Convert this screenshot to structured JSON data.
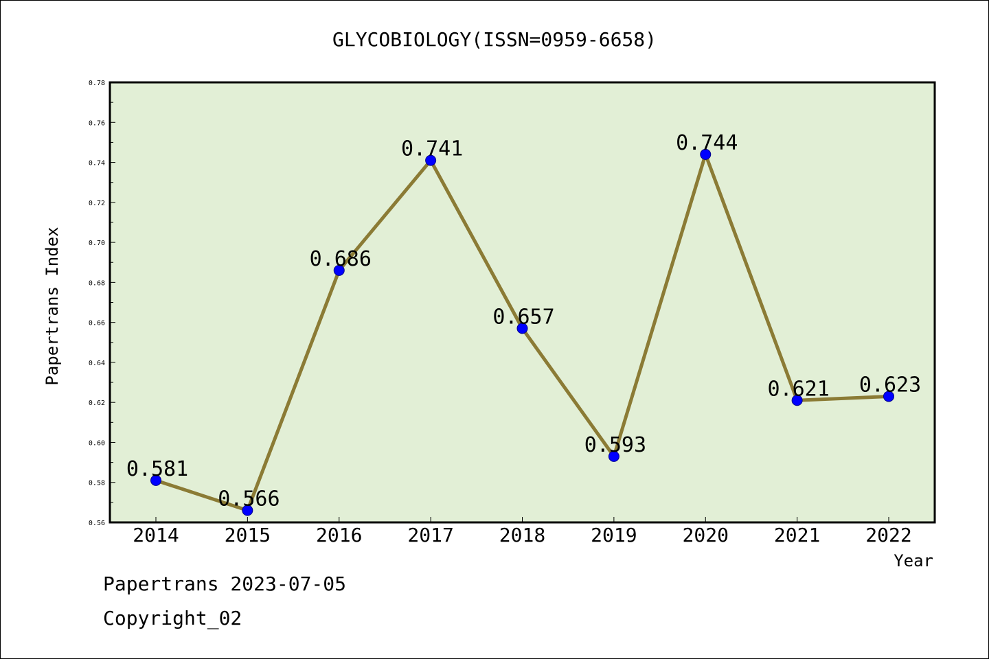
{
  "chart_data": {
    "type": "line",
    "title": "GLYCOBIOLOGY(ISSN=0959-6658)",
    "xlabel": "Year",
    "ylabel": "Papertrans Index",
    "categories": [
      "2014",
      "2015",
      "2016",
      "2017",
      "2018",
      "2019",
      "2020",
      "2021",
      "2022"
    ],
    "series": [
      {
        "values": [
          0.581,
          0.566,
          0.686,
          0.741,
          0.657,
          0.593,
          0.744,
          0.621,
          0.623
        ],
        "data_labels": [
          "0.581",
          "0.566",
          "0.686",
          "0.741",
          "0.657",
          "0.593",
          "0.744",
          "0.621",
          "0.623"
        ]
      }
    ],
    "ylim": [
      0.56,
      0.78
    ],
    "yticks": [
      "0.56",
      "0.58",
      "0.60",
      "0.62",
      "0.64",
      "0.66",
      "0.68",
      "0.70",
      "0.72",
      "0.74",
      "0.76",
      "0.78"
    ],
    "grid": false,
    "legend": "none",
    "colors": {
      "plot_background": "#e2efd6",
      "line": "#8b7b35",
      "marker": "#0000ff"
    }
  },
  "footer": {
    "date_line": "Papertrans 2023-07-05",
    "copyright": "Copyright_02"
  }
}
